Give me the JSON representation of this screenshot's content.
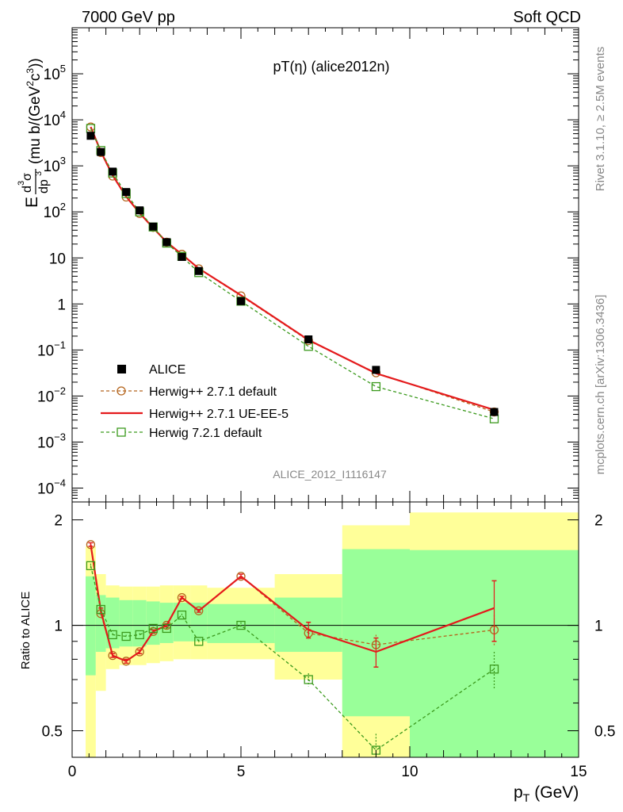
{
  "header": {
    "left": "7000 GeV pp",
    "right": "Soft QCD"
  },
  "side_labels": {
    "rivet": "Rivet 3.1.10, ≥ 2.5M events",
    "mcplots": "mcplots.cern.ch [arXiv:1306.3436]"
  },
  "chart_data": [
    {
      "type": "line",
      "panel": "main",
      "title": "pT(η) (alice2012n)",
      "watermark": "ALICE_2012_I1116147",
      "ylabel": "E d³σ/dp³ (mu b/(GeV²c³))",
      "ylabel_parts": {
        "E": "E",
        "num_d": "d",
        "num_exp": "3",
        "sigma": "σ",
        "den_d": "dp",
        "den_exp": "3",
        "units": "(mu b/(GeV",
        "units_exp1": "2",
        "units_mid": "c",
        "units_exp2": "3",
        "units_end": "))"
      },
      "xlim": [
        0,
        15
      ],
      "ylim": [
        5e-05,
        1000000
      ],
      "log_y": true,
      "yticks": [
        {
          "value": 0.0001,
          "base": "10",
          "exp": "−4"
        },
        {
          "value": 0.001,
          "base": "10",
          "exp": "−3"
        },
        {
          "value": 0.01,
          "base": "10",
          "exp": "−2"
        },
        {
          "value": 0.1,
          "base": "10",
          "exp": "−1"
        },
        {
          "value": 1,
          "base": "1",
          "exp": ""
        },
        {
          "value": 10,
          "base": "10",
          "exp": ""
        },
        {
          "value": 100,
          "base": "10",
          "exp": "2"
        },
        {
          "value": 1000,
          "base": "10",
          "exp": "3"
        },
        {
          "value": 10000,
          "base": "10",
          "exp": "4"
        },
        {
          "value": 100000,
          "base": "10",
          "exp": "5"
        }
      ],
      "legend_position": "bottom-left",
      "series": [
        {
          "name": "ALICE",
          "style": "data",
          "color": "#000000",
          "x": [
            0.55,
            0.85,
            1.2,
            1.6,
            2.0,
            2.4,
            2.8,
            3.25,
            3.75,
            5.0,
            7.0,
            9.0,
            12.5
          ],
          "y": [
            4500,
            2000,
            750,
            270,
            108,
            48,
            22,
            10.5,
            5.2,
            1.15,
            0.17,
            0.037,
            0.0045
          ]
        },
        {
          "name": "Herwig++ 2.7.1 default",
          "style": "circle-dashed",
          "color": "#b5651d",
          "x": [
            0.55,
            0.85,
            1.2,
            1.6,
            2.0,
            2.4,
            2.8,
            3.25,
            3.75,
            5.0,
            7.0,
            9.0,
            12.5
          ],
          "y": [
            7000,
            1950,
            600,
            210,
            92,
            46,
            22,
            12,
            5.8,
            1.5,
            0.16,
            0.032,
            0.0045
          ]
        },
        {
          "name": "Herwig++ 2.7.1 UE-EE-5",
          "style": "solid",
          "color": "#e41a1c",
          "x": [
            0.55,
            0.85,
            1.2,
            1.6,
            2.0,
            2.4,
            2.8,
            3.25,
            3.75,
            5.0,
            7.0,
            9.0,
            12.5
          ],
          "y": [
            7000,
            2050,
            620,
            215,
            94,
            45,
            22,
            12,
            5.9,
            1.55,
            0.165,
            0.031,
            0.005
          ]
        },
        {
          "name": "Herwig 7.2.1 default",
          "style": "square-dashed",
          "color": "#3c9a1e",
          "x": [
            0.55,
            0.85,
            1.2,
            1.6,
            2.0,
            2.4,
            2.8,
            3.25,
            3.75,
            5.0,
            7.0,
            9.0,
            12.5
          ],
          "y": [
            6500,
            2150,
            700,
            250,
            100,
            47,
            21,
            10.8,
            4.8,
            1.15,
            0.12,
            0.016,
            0.0032
          ]
        }
      ]
    },
    {
      "type": "line",
      "panel": "ratio",
      "ylabel": "Ratio to ALICE",
      "xlabel": "p",
      "xlabel_sub": "T",
      "xlabel_units": "(GeV)",
      "xlim": [
        0,
        15
      ],
      "ylim": [
        0.42,
        2.25
      ],
      "log_y": true,
      "yticks": [
        {
          "value": 0.5,
          "label": "0.5"
        },
        {
          "value": 1,
          "label": "1"
        },
        {
          "value": 2,
          "label": "2"
        }
      ],
      "xticks": [
        {
          "value": 0,
          "label": "0"
        },
        {
          "value": 5,
          "label": "5"
        },
        {
          "value": 10,
          "label": "10"
        },
        {
          "value": 15,
          "label": "15"
        }
      ],
      "bands": {
        "bins": [
          {
            "x0": 0.4,
            "x1": 0.7,
            "y1_lo": 0.72,
            "y1_hi": 1.38,
            "y2_lo": 0.35,
            "y2_hi": 1.68
          },
          {
            "x0": 0.7,
            "x1": 1.0,
            "y1_lo": 0.84,
            "y1_hi": 1.22,
            "y2_lo": 0.65,
            "y2_hi": 1.4
          },
          {
            "x0": 1.0,
            "x1": 1.4,
            "y1_lo": 0.86,
            "y1_hi": 1.2,
            "y2_lo": 0.75,
            "y2_hi": 1.3
          },
          {
            "x0": 1.4,
            "x1": 1.8,
            "y1_lo": 0.87,
            "y1_hi": 1.18,
            "y2_lo": 0.77,
            "y2_hi": 1.29
          },
          {
            "x0": 1.8,
            "x1": 2.2,
            "y1_lo": 0.87,
            "y1_hi": 1.18,
            "y2_lo": 0.77,
            "y2_hi": 1.29
          },
          {
            "x0": 2.2,
            "x1": 2.6,
            "y1_lo": 0.88,
            "y1_hi": 1.17,
            "y2_lo": 0.78,
            "y2_hi": 1.29
          },
          {
            "x0": 2.6,
            "x1": 3.0,
            "y1_lo": 0.89,
            "y1_hi": 1.16,
            "y2_lo": 0.79,
            "y2_hi": 1.3
          },
          {
            "x0": 3.0,
            "x1": 3.5,
            "y1_lo": 0.9,
            "y1_hi": 1.16,
            "y2_lo": 0.8,
            "y2_hi": 1.3
          },
          {
            "x0": 3.5,
            "x1": 4.0,
            "y1_lo": 0.9,
            "y1_hi": 1.16,
            "y2_lo": 0.8,
            "y2_hi": 1.3
          },
          {
            "x0": 4.0,
            "x1": 6.0,
            "y1_lo": 0.89,
            "y1_hi": 1.15,
            "y2_lo": 0.8,
            "y2_hi": 1.28
          },
          {
            "x0": 6.0,
            "x1": 8.0,
            "y1_lo": 0.84,
            "y1_hi": 1.2,
            "y2_lo": 0.7,
            "y2_hi": 1.4
          },
          {
            "x0": 8.0,
            "x1": 10.0,
            "y1_lo": 0.55,
            "y1_hi": 1.65,
            "y2_lo": 0.35,
            "y2_hi": 1.93
          },
          {
            "x0": 10.0,
            "x1": 15.0,
            "y1_lo": 0.38,
            "y1_hi": 1.64,
            "y2_lo": 0.35,
            "y2_hi": 2.1
          }
        ],
        "inner_color": "#99ff99",
        "outer_color": "#ffff99"
      },
      "series": [
        {
          "name": "Herwig++ 2.7.1 default",
          "style": "circle-dashed",
          "color": "#b5651d",
          "x": [
            0.55,
            0.85,
            1.2,
            1.6,
            2.0,
            2.4,
            2.8,
            3.25,
            3.75,
            5.0,
            7.0,
            9.0,
            12.5
          ],
          "y": [
            1.7,
            1.08,
            0.82,
            0.79,
            0.84,
            0.96,
            1.0,
            1.2,
            1.1,
            1.38,
            0.95,
            0.88,
            0.97
          ],
          "err": [
            0.02,
            0.02,
            0.01,
            0.01,
            0.01,
            0.01,
            0.01,
            0.01,
            0.01,
            0.02,
            0.04,
            0.06,
            0.1
          ]
        },
        {
          "name": "Herwig++ 2.7.1 UE-EE-5",
          "style": "solid",
          "color": "#e41a1c",
          "x": [
            0.55,
            0.85,
            1.2,
            1.6,
            2.0,
            2.4,
            2.8,
            3.25,
            3.75,
            5.0,
            7.0,
            9.0,
            12.5
          ],
          "y": [
            1.7,
            1.1,
            0.82,
            0.79,
            0.84,
            0.96,
            1.0,
            1.2,
            1.1,
            1.38,
            0.97,
            0.84,
            1.12
          ],
          "err": [
            0.02,
            0.02,
            0.01,
            0.01,
            0.01,
            0.01,
            0.01,
            0.01,
            0.01,
            0.02,
            0.05,
            0.08,
            0.22
          ]
        },
        {
          "name": "Herwig 7.2.1 default",
          "style": "square-dashed",
          "color": "#3c9a1e",
          "x": [
            0.55,
            0.85,
            1.2,
            1.6,
            2.0,
            2.4,
            2.8,
            3.25,
            3.75,
            5.0,
            7.0,
            9.0,
            12.5
          ],
          "y": [
            1.48,
            1.11,
            0.94,
            0.93,
            0.94,
            0.98,
            0.98,
            1.07,
            0.9,
            1.0,
            0.7,
            0.44,
            0.75
          ],
          "err": [
            0.02,
            0.02,
            0.01,
            0.01,
            0.01,
            0.01,
            0.01,
            0.01,
            0.01,
            0.02,
            0.03,
            0.05,
            0.09
          ]
        }
      ]
    }
  ]
}
